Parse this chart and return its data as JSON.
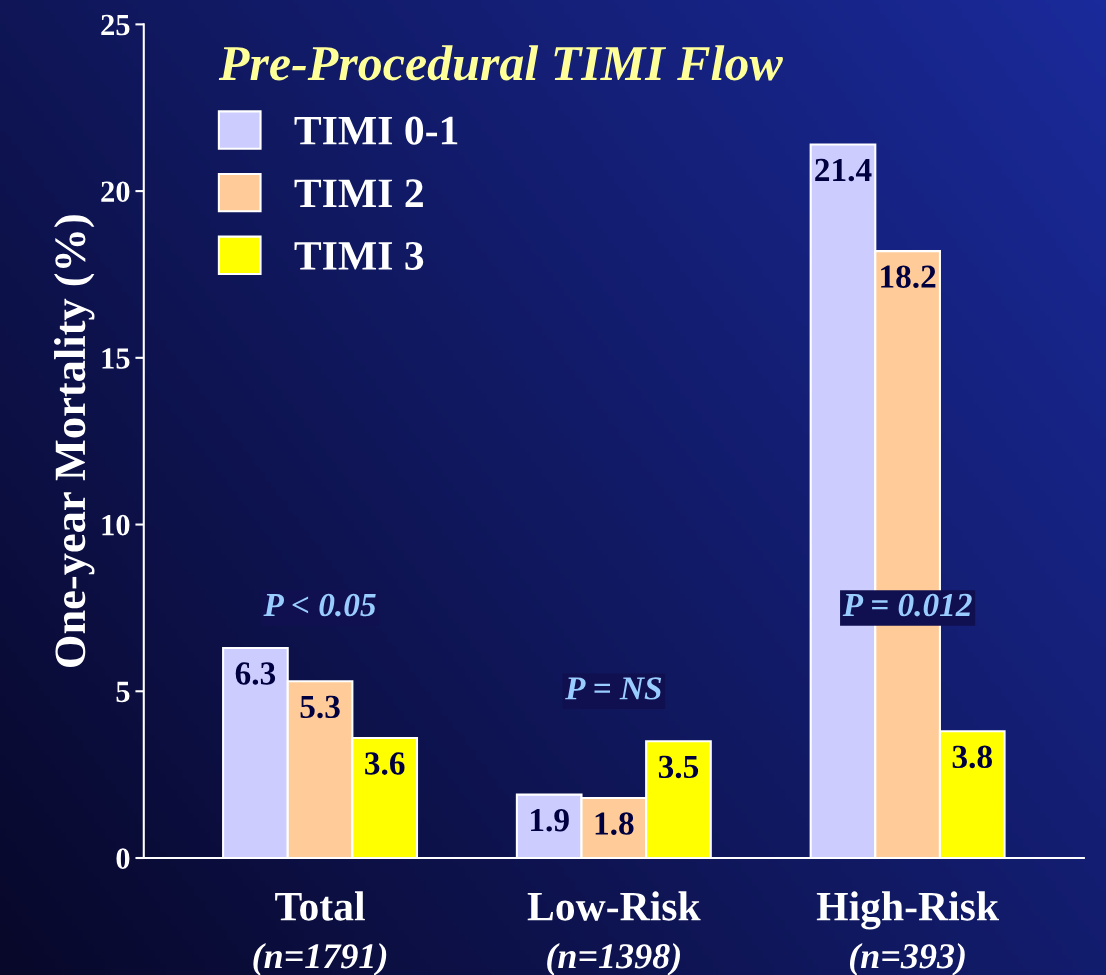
{
  "chart_data": {
    "type": "bar",
    "legend_title": "Pre-Procedural TIMI Flow",
    "ylabel": "One-year Mortality (%)",
    "categories": [
      "Total\n(n=1791)",
      "Low-Risk\n(n=1398)",
      "High-Risk\n(n=393)"
    ],
    "series": [
      {
        "name": "TIMI 0-1",
        "color": "#ccccff",
        "values": [
          6.3,
          1.9,
          21.4
        ]
      },
      {
        "name": "TIMI 2",
        "color": "#ffcc99",
        "values": [
          5.3,
          1.8,
          18.2
        ]
      },
      {
        "name": "TIMI 3",
        "color": "#ffff00",
        "values": [
          3.6,
          3.5,
          3.8
        ]
      }
    ],
    "ylim": [
      0,
      25
    ],
    "yticks": [
      0,
      5,
      10,
      15,
      20,
      25
    ],
    "data_labels": true,
    "grid": false,
    "legend": "top left",
    "annotations": [
      "P < 0.05",
      "P = NS",
      "P = 0.012"
    ]
  }
}
